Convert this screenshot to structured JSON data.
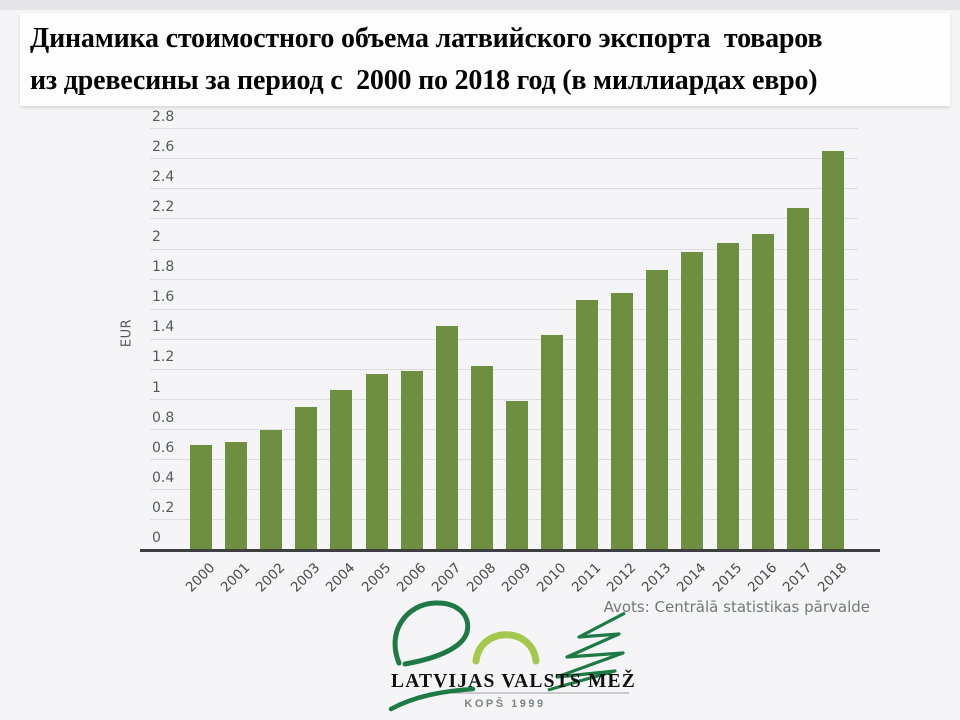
{
  "page": {
    "title_line1": "Динамика стоимостного объема латвийского экспорта  товаров",
    "title_line2": "из древесины за период с  2000 по 2018 год (в миллиардах евро)",
    "source_note": "Avots: Centrālā statistikas pārvalde"
  },
  "logo": {
    "name_text": "LATVIJAS VALSTS MEŽI",
    "since_text": "KOPŠ 1999",
    "dark_green": "#1d7a45",
    "light_green": "#a4c84e"
  },
  "chart_data": {
    "type": "bar",
    "title": "Динамика стоимостного объема латвийского экспорта товаров из древесины за период с 2000 по 2018 год (в миллиардах евро)",
    "categories": [
      "2000",
      "2001",
      "2002",
      "2003",
      "2004",
      "2005",
      "2006",
      "2007",
      "2008",
      "2009",
      "2010",
      "2011",
      "2012",
      "2013",
      "2014",
      "2015",
      "2016",
      "2017",
      "2018"
    ],
    "values": [
      0.7,
      0.72,
      0.8,
      0.95,
      1.06,
      1.17,
      1.19,
      1.49,
      1.22,
      0.99,
      1.43,
      1.66,
      1.71,
      1.86,
      1.98,
      2.04,
      2.1,
      2.27,
      2.65
    ],
    "xlabel": "",
    "ylabel": "EUR",
    "ylim": [
      0,
      2.8
    ],
    "yticks": [
      "0",
      "0.2",
      "0.4",
      "0.6",
      "0.8",
      "1",
      "1.2",
      "1.4",
      "1.6",
      "1.8",
      "2",
      "2.2",
      "2.4",
      "2.6",
      "2.8"
    ],
    "grid": true,
    "legend": "none",
    "bar_color": "#6d8f3f",
    "source": "Avots: Centrālā statistikas pārvalde"
  },
  "colors": {
    "background": "#f5f5f7",
    "top_strip": "#e6e6e9",
    "title_box": "#fdfdfe",
    "gridline": "#dcdcdf",
    "axis_line": "#3c3e40",
    "tick_text": "#55595e",
    "source_text": "#75787b"
  }
}
